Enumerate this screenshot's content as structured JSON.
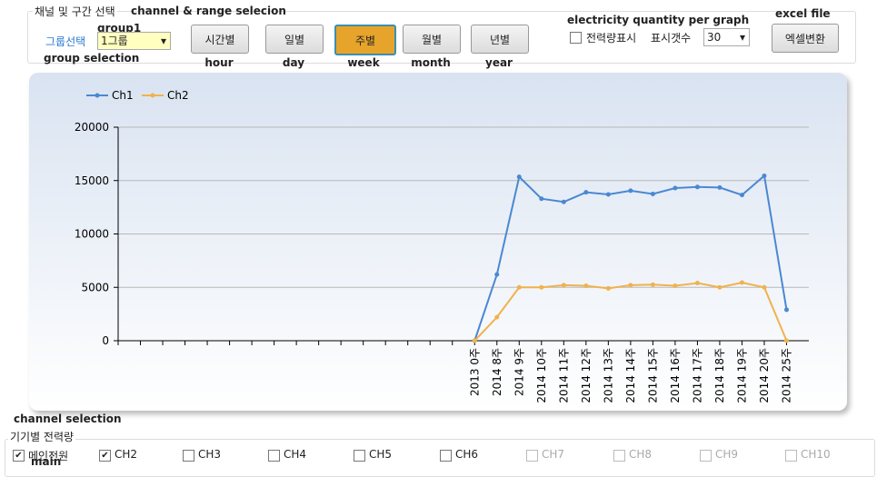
{
  "ui": {
    "range_box": {
      "title": "채널 및 구간 선택",
      "note": "channel & range selecion"
    },
    "group": {
      "label": "그룹선택",
      "value": "1그룹",
      "note_value": "group1",
      "note_label": "group selection"
    },
    "buttons": [
      {
        "label": "시간별",
        "caption": "hour",
        "active": false
      },
      {
        "label": "일별",
        "caption": "day",
        "active": false
      },
      {
        "label": "주별",
        "caption": "week",
        "active": true
      },
      {
        "label": "월별",
        "caption": "month",
        "active": false
      },
      {
        "label": "년별",
        "caption": "year",
        "active": false
      }
    ],
    "quantity": {
      "note": "electricity quantity per graph",
      "checkbox": "전력량표시",
      "checked": false,
      "count_label": "표시갯수",
      "count_value": "30"
    },
    "excel": {
      "note": "excel file",
      "button": "엑셀변환"
    },
    "channels_box": {
      "note": "channel selection",
      "title": "기기별 전력량",
      "main_note": "main"
    },
    "channels": [
      {
        "label": "메인전원",
        "checked": true,
        "enabled": true
      },
      {
        "label": "CH2",
        "checked": true,
        "enabled": true
      },
      {
        "label": "CH3",
        "checked": false,
        "enabled": true
      },
      {
        "label": "CH4",
        "checked": false,
        "enabled": true
      },
      {
        "label": "CH5",
        "checked": false,
        "enabled": true
      },
      {
        "label": "CH6",
        "checked": false,
        "enabled": true
      },
      {
        "label": "CH7",
        "checked": false,
        "enabled": false
      },
      {
        "label": "CH8",
        "checked": false,
        "enabled": false
      },
      {
        "label": "CH9",
        "checked": false,
        "enabled": false
      },
      {
        "label": "CH10",
        "checked": false,
        "enabled": false
      }
    ]
  },
  "chart_data": {
    "type": "line",
    "categories": [
      null,
      null,
      null,
      null,
      null,
      null,
      null,
      null,
      null,
      null,
      null,
      null,
      null,
      null,
      null,
      null,
      "2013 0주",
      "2014 8주",
      "2014 9주",
      "2014 10주",
      "2014 11주",
      "2014 12주",
      "2014 13주",
      "2014 14주",
      "2014 15주",
      "2014 16주",
      "2014 17주",
      "2014 18주",
      "2014 19주",
      "2014 20주",
      "2014 25주"
    ],
    "series": [
      {
        "name": "Ch1",
        "color": "#4a88d2",
        "values": [
          null,
          null,
          null,
          null,
          null,
          null,
          null,
          null,
          null,
          null,
          null,
          null,
          null,
          null,
          null,
          null,
          0,
          6200,
          15350,
          13300,
          13000,
          13900,
          13700,
          14050,
          13750,
          14300,
          14400,
          14350,
          13650,
          15450,
          2900
        ]
      },
      {
        "name": "Ch2",
        "color": "#f0b24c",
        "values": [
          null,
          null,
          null,
          null,
          null,
          null,
          null,
          null,
          null,
          null,
          null,
          null,
          null,
          null,
          null,
          null,
          0,
          2200,
          5000,
          5000,
          5200,
          5150,
          4900,
          5200,
          5250,
          5150,
          5400,
          5000,
          5450,
          5000,
          0
        ]
      }
    ],
    "ylim": [
      0,
      20000
    ],
    "yticks": [
      0,
      5000,
      10000,
      15000,
      20000
    ],
    "grid": true,
    "legend": "top-left"
  }
}
